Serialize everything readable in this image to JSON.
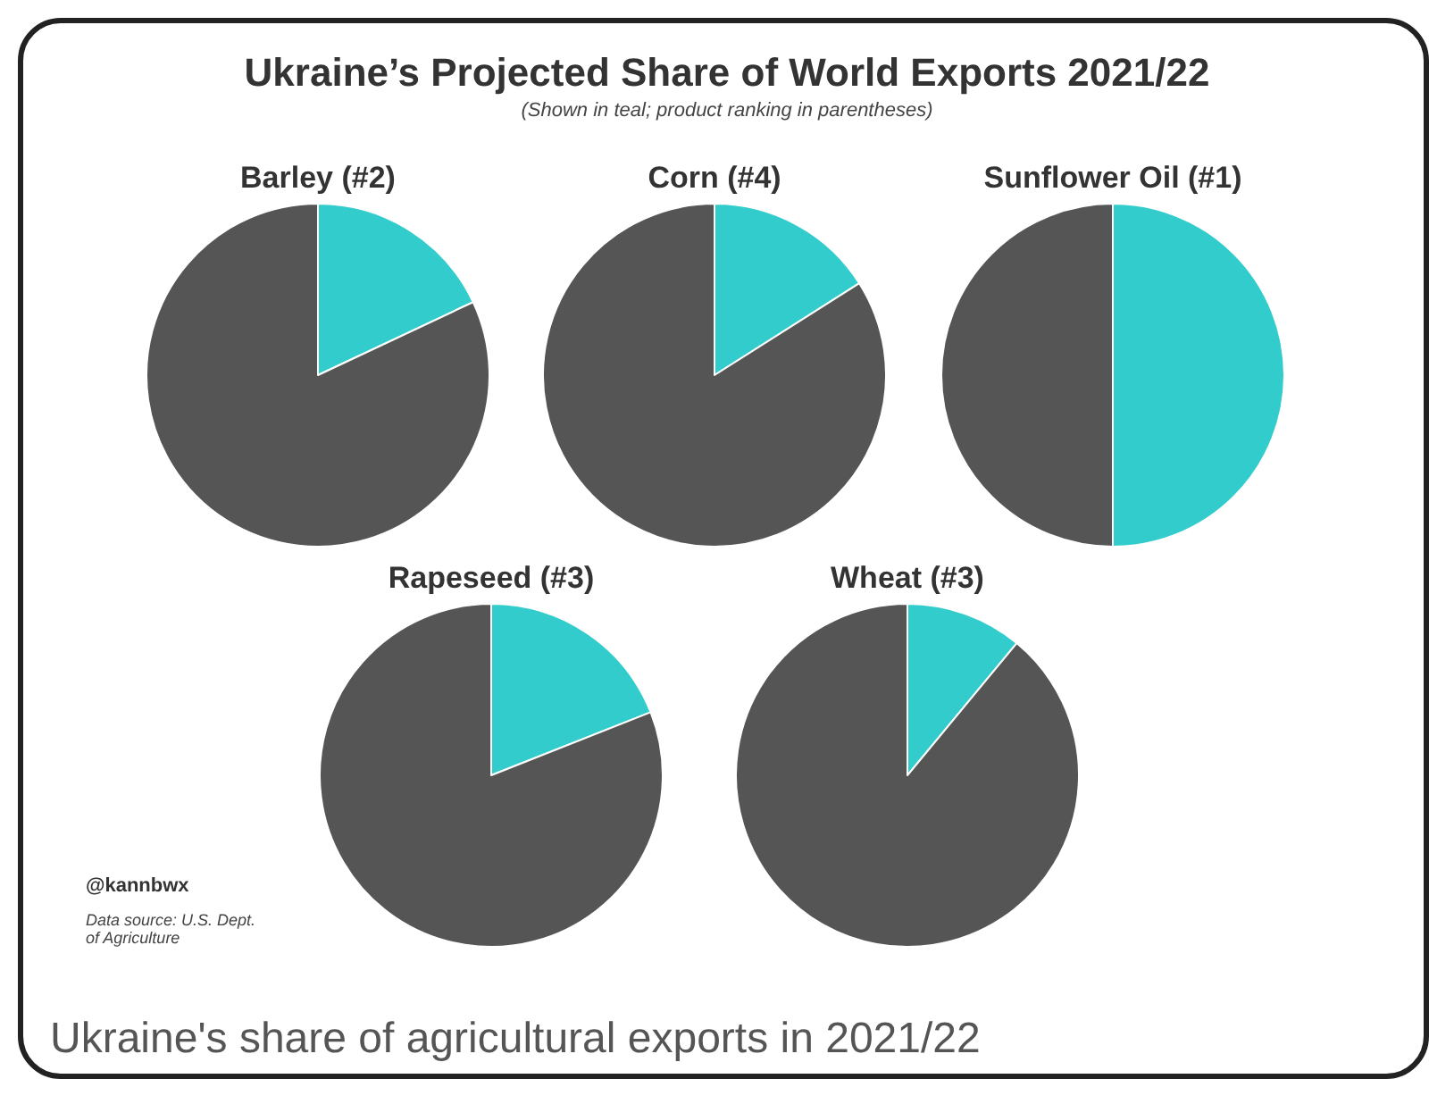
{
  "chart_data": [
    {
      "type": "other",
      "title": "Ukraine’s Projected Share of World Exports 2021/22",
      "subtitle": "(Shown in teal; product ranking in parentheses)",
      "annotations": [
        "@kannbwx",
        "Data source: U.S. Dept. of Agriculture",
        "Ukraine's share of agricultural exports in 2021/22"
      ]
    },
    {
      "type": "pie",
      "title": "Barley (#2)",
      "categories": [
        null,
        null
      ],
      "values": [
        18,
        82
      ],
      "colors": [
        "#33cccc",
        "#555555"
      ]
    },
    {
      "type": "pie",
      "title": "Corn (#4)",
      "categories": [
        null,
        null
      ],
      "values": [
        16,
        84
      ],
      "colors": [
        "#33cccc",
        "#555555"
      ]
    },
    {
      "type": "pie",
      "title": "Sunflower Oil (#1)",
      "categories": [
        null,
        null
      ],
      "values": [
        50,
        50
      ],
      "colors": [
        "#33cccc",
        "#555555"
      ]
    },
    {
      "type": "pie",
      "title": "Rapeseed (#3)",
      "categories": [
        null,
        null
      ],
      "values": [
        19,
        81
      ],
      "colors": [
        "#33cccc",
        "#555555"
      ]
    },
    {
      "type": "pie",
      "title": "Wheat (#3)",
      "categories": [
        null,
        null
      ],
      "values": [
        11,
        89
      ],
      "colors": [
        "#33cccc",
        "#555555"
      ]
    }
  ]
}
